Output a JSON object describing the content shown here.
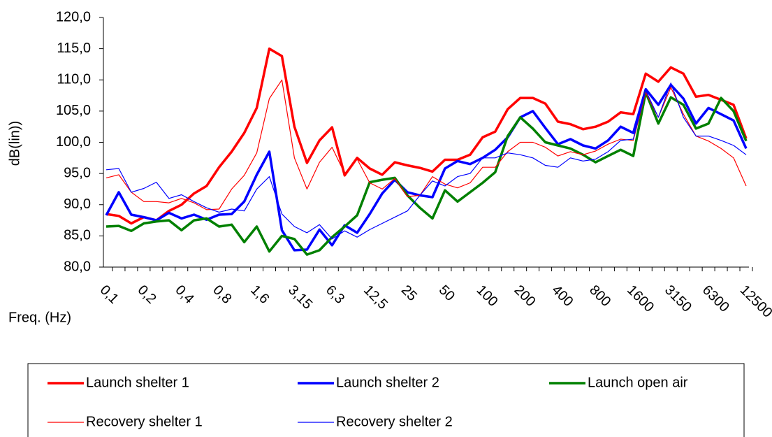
{
  "chart_data": {
    "type": "line",
    "ylabel": "dB(lin))",
    "xlabel": "Freq. (Hz)",
    "categories": [
      "0,1",
      null,
      null,
      "0,2",
      null,
      null,
      "0,4",
      null,
      null,
      "0,8",
      null,
      null,
      "1,6",
      null,
      null,
      "3,15",
      null,
      null,
      "6,3",
      null,
      null,
      "12,5",
      null,
      null,
      "25",
      null,
      null,
      "50",
      null,
      null,
      "100",
      null,
      null,
      "200",
      null,
      null,
      "400",
      null,
      null,
      "800",
      null,
      null,
      "1600",
      null,
      null,
      "3150",
      null,
      null,
      "6300",
      null,
      null,
      "12500"
    ],
    "ylim": [
      80,
      120
    ],
    "yticks": [
      {
        "value": 80,
        "label": "80,0"
      },
      {
        "value": 85,
        "label": "85,0"
      },
      {
        "value": 90,
        "label": "90,0"
      },
      {
        "value": 95,
        "label": "95,0"
      },
      {
        "value": 100,
        "label": "100,0"
      },
      {
        "value": 105,
        "label": "105,0"
      },
      {
        "value": 110,
        "label": "110,0"
      },
      {
        "value": 115,
        "label": "115,0"
      },
      {
        "value": 120,
        "label": "120,0"
      }
    ],
    "legend": "bottom",
    "series": [
      {
        "name": "Launch shelter 1",
        "color": "#ff0000",
        "line_width": 3.5,
        "values": [
          88.5,
          88.2,
          87,
          88,
          87.5,
          89,
          90,
          91.8,
          93,
          96,
          98.5,
          101.5,
          105.5,
          115,
          113.8,
          102.5,
          96.7,
          100.3,
          102.4,
          94.7,
          97.5,
          95.8,
          94.8,
          96.8,
          96.3,
          95.9,
          95.3,
          97.2,
          97.2,
          98,
          100.8,
          101.7,
          105.3,
          107.1,
          107.1,
          106.2,
          103.3,
          102.9,
          102.1,
          102.5,
          103.3,
          104.8,
          104.5,
          111,
          109.7,
          112,
          111,
          107.3,
          107.6,
          106.8,
          106,
          100.6
        ]
      },
      {
        "name": "Launch shelter 2",
        "color": "#0000ff",
        "line_width": 3.5,
        "values": [
          88.3,
          92,
          88.4,
          88,
          87.5,
          88.7,
          87.8,
          88.4,
          87.6,
          88.4,
          88.5,
          90.5,
          94.8,
          98.5,
          85.9,
          82.7,
          82.8,
          86,
          83.5,
          86.7,
          85.5,
          88.5,
          91.8,
          94,
          92,
          91.5,
          91.2,
          95.8,
          97,
          96.5,
          97.5,
          98.8,
          100.8,
          104,
          105,
          102.3,
          99.7,
          100.5,
          99.5,
          99,
          100.3,
          102.5,
          101.5,
          108.5,
          106,
          109.2,
          107,
          103,
          105.5,
          104.5,
          103.5,
          99
        ]
      },
      {
        "name": "Launch open air",
        "color": "#008000",
        "line_width": 3.5,
        "values": [
          86.5,
          86.6,
          85.8,
          87,
          87.3,
          87.5,
          85.9,
          87.5,
          87.8,
          86.5,
          86.8,
          84,
          86.5,
          82.5,
          85,
          84.5,
          82,
          82.7,
          84.8,
          86.5,
          88.3,
          93.6,
          94,
          94.3,
          91.5,
          89.5,
          87.8,
          92.3,
          90.5,
          92,
          93.5,
          95.2,
          101,
          104,
          102.2,
          100,
          99.5,
          99,
          98,
          96.8,
          97.8,
          98.8,
          97.8,
          108,
          103,
          107.2,
          106,
          102.2,
          103,
          107.1,
          105,
          100.2
        ]
      },
      {
        "name": "Recovery shelter 1",
        "color": "#ff0000",
        "line_width": 1.2,
        "values": [
          94.3,
          94.8,
          92,
          90.5,
          90.5,
          90.3,
          91,
          90.3,
          89.2,
          89.3,
          92.5,
          94.7,
          98.3,
          107,
          110,
          97.5,
          92.5,
          96.8,
          99.2,
          95,
          97.3,
          93.5,
          92.5,
          94.2,
          91.3,
          91.5,
          94.5,
          93.3,
          92.7,
          93.5,
          96,
          96,
          98.5,
          100,
          100,
          99.2,
          97.8,
          98.5,
          98,
          98.6,
          99.7,
          100.5,
          100.3,
          108,
          104,
          108.8,
          104.5,
          101,
          100.2,
          99,
          97.5,
          93
        ]
      },
      {
        "name": "Recovery shelter 2",
        "color": "#0000ff",
        "line_width": 1.2,
        "values": [
          95.6,
          95.8,
          92,
          92.6,
          93.6,
          91,
          91.6,
          90.5,
          89.5,
          88.8,
          89.3,
          89,
          92.5,
          94.5,
          88.5,
          86.5,
          85.5,
          86.8,
          84.5,
          85.8,
          84.8,
          86,
          87,
          88,
          89,
          91.5,
          93.8,
          93,
          94.5,
          95,
          97.5,
          97.5,
          98.3,
          98,
          97.5,
          96.3,
          96,
          97.5,
          97,
          97.3,
          98.5,
          100.3,
          100.5,
          108.3,
          104,
          109.5,
          104,
          101,
          101,
          100.3,
          99.5,
          98
        ]
      }
    ]
  }
}
